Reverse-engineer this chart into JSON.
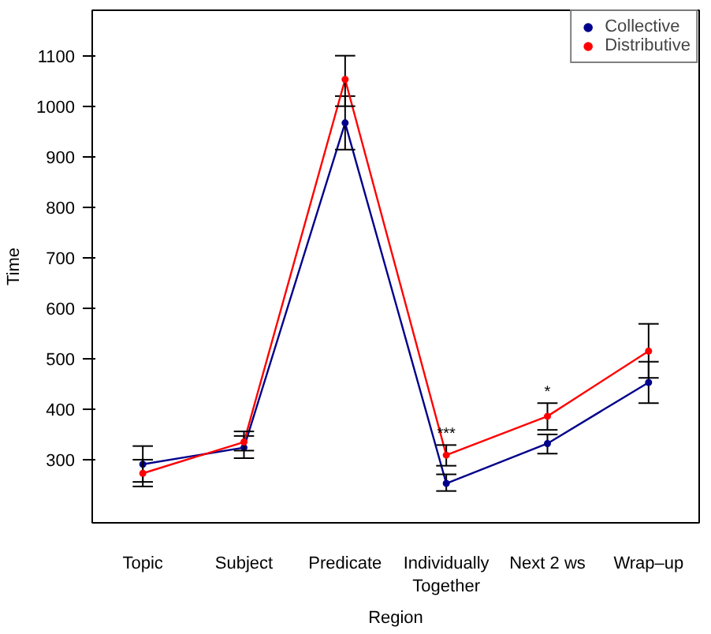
{
  "chart_data": {
    "type": "line",
    "xlabel": "Region",
    "ylabel": "Time",
    "categories": [
      "Topic",
      "Subject",
      "Predicate",
      "Individually\nTogether",
      "Next 2 ws",
      "Wrap–up"
    ],
    "ylim": [
      175,
      1190
    ],
    "yticks": [
      300,
      400,
      500,
      600,
      700,
      800,
      900,
      1000,
      1100
    ],
    "grid": false,
    "legend": "top right",
    "marker": "circle",
    "line_style": "solid",
    "series": [
      {
        "name": "Collective",
        "color": "#00008b",
        "values": [
          291,
          324,
          967,
          253,
          332,
          453
        ],
        "errors": [
          [
            256,
            327
          ],
          [
            303,
            347
          ],
          [
            914,
            1020
          ],
          [
            238,
            271
          ],
          [
            312,
            350
          ],
          [
            412,
            494
          ]
        ]
      },
      {
        "name": "Distributive",
        "color": "#ff0000",
        "values": [
          273,
          335,
          1053,
          309,
          386,
          515
        ],
        "errors": [
          [
            247,
            300
          ],
          [
            318,
            356
          ],
          [
            1000,
            1100
          ],
          [
            288,
            329
          ],
          [
            359,
            412
          ],
          [
            462,
            569
          ]
        ]
      }
    ],
    "annotations": [
      {
        "text": "***",
        "x": "Individually\nTogether",
        "y": 329
      },
      {
        "text": "*",
        "x": "Next 2 ws",
        "y": 412
      }
    ]
  }
}
